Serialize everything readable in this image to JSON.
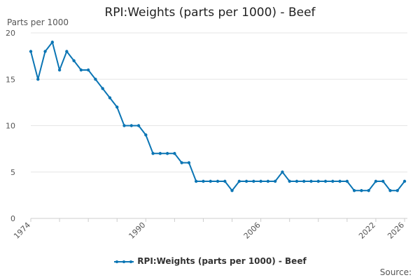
{
  "chart_data": {
    "type": "line",
    "title": "RPI:Weights (parts per 1000) - Beef",
    "ylabel": "Parts per 1000",
    "xlabel": "",
    "ylim": [
      0,
      20
    ],
    "yticks": [
      0,
      5,
      10,
      15,
      20
    ],
    "xlim": [
      1974,
      2026
    ],
    "xticks": [
      1974,
      1990,
      2006,
      2022,
      2026
    ],
    "x": [
      1974,
      1975,
      1976,
      1977,
      1978,
      1979,
      1980,
      1981,
      1982,
      1983,
      1984,
      1985,
      1986,
      1987,
      1988,
      1989,
      1990,
      1991,
      1992,
      1993,
      1994,
      1995,
      1996,
      1997,
      1998,
      1999,
      2000,
      2001,
      2002,
      2003,
      2004,
      2005,
      2006,
      2007,
      2008,
      2009,
      2010,
      2011,
      2012,
      2013,
      2014,
      2015,
      2016,
      2017,
      2018,
      2019,
      2020,
      2021,
      2022,
      2023,
      2024,
      2025,
      2026
    ],
    "series": [
      {
        "name": "RPI:Weights (parts per 1000) - Beef",
        "color": "#0b75b4",
        "values": [
          18,
          15,
          18,
          19,
          16,
          18,
          17,
          16,
          16,
          15,
          14,
          13,
          12,
          10,
          10,
          10,
          9,
          7,
          7,
          7,
          7,
          6,
          6,
          4,
          4,
          4,
          4,
          4,
          3,
          4,
          4,
          4,
          4,
          4,
          4,
          5,
          4,
          4,
          4,
          4,
          4,
          4,
          4,
          4,
          4,
          3,
          3,
          3,
          4,
          4,
          3,
          3,
          4
        ]
      }
    ],
    "legend": "RPI:Weights (parts per 1000) - Beef",
    "source": "Source:"
  }
}
